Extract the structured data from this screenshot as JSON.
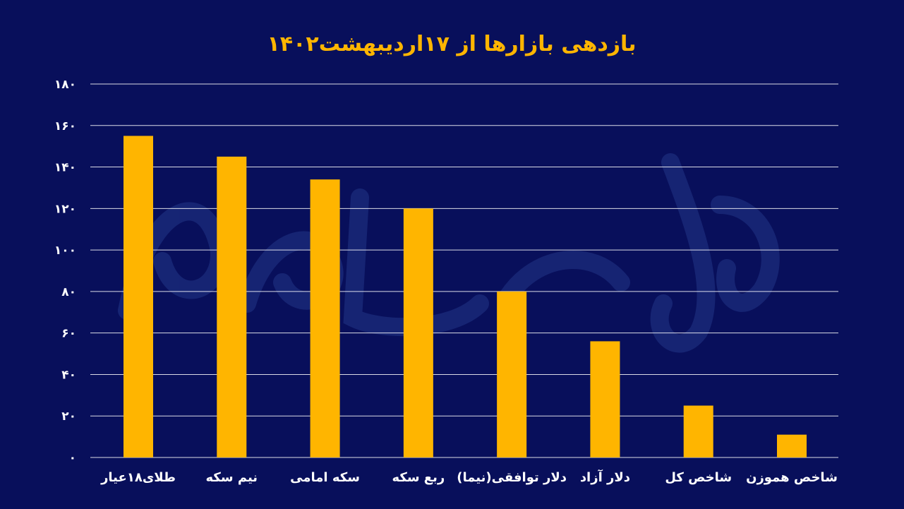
{
  "chart_data": {
    "type": "bar",
    "title": "بازدهی بازارها از ۱۷اردیبهشت۱۴۰۲",
    "xlabel": "",
    "ylabel": "",
    "ylim": [
      0,
      180
    ],
    "y_ticks": [
      0,
      20,
      40,
      60,
      80,
      100,
      120,
      140,
      160,
      180
    ],
    "y_tick_labels": [
      "۰",
      "۲۰",
      "۴۰",
      "۶۰",
      "۸۰",
      "۱۰۰",
      "۱۲۰",
      "۱۴۰",
      "۱۶۰",
      "۱۸۰"
    ],
    "categories": [
      "طلای۱۸عیار",
      "نیم سکه",
      "سکه امامی",
      "ربع سکه",
      "دلار توافقی(نیما)",
      "دلار آزاد",
      "شاخص کل",
      "شاخص هموزن"
    ],
    "values": [
      155,
      145,
      134,
      120,
      80,
      56,
      25,
      11
    ],
    "grid": true,
    "legend": "none",
    "colors": {
      "background": "#080f5b",
      "bar": "#ffb500",
      "title": "#ffb500",
      "text": "#ffffff",
      "grid": "#ffffff"
    }
  }
}
